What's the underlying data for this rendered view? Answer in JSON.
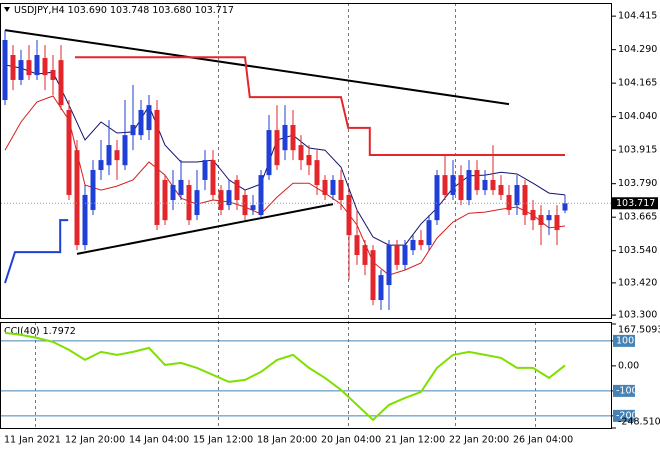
{
  "chart_data": [
    {
      "type": "candlestick",
      "title": "USDJPY,H4",
      "last_bar_labels": {
        "open": "103.690",
        "high": "103.748",
        "low": "103.680",
        "close": "103.717"
      },
      "categories": [
        "11 Jan 2021",
        null,
        null,
        null,
        null,
        null,
        null,
        null,
        "12 Jan 20:00",
        null,
        null,
        null,
        null,
        null,
        null,
        null,
        "14 Jan 04:00",
        null,
        null,
        null,
        null,
        null,
        null,
        null,
        "15 Jan 12:00",
        null,
        null,
        null,
        null,
        null,
        null,
        null,
        "18 Jan 20:00",
        null,
        null,
        null,
        null,
        null,
        null,
        null,
        "20 Jan 04:00",
        null,
        null,
        null,
        null,
        null,
        null,
        null,
        "21 Jan 12:00",
        null,
        null,
        null,
        null,
        null,
        null,
        null,
        "22 Jan 20:00",
        null,
        null,
        null,
        null,
        null,
        null,
        null,
        "26 Jan 04:00",
        null,
        null,
        null,
        null,
        null,
        null
      ],
      "open": [
        104.102,
        104.27,
        104.177,
        104.251,
        104.195,
        104.259,
        104.214,
        104.251,
        104.065,
        103.915,
        103.561,
        103.692,
        103.841,
        103.859,
        103.915,
        103.859,
        103.971,
        103.971,
        103.99,
        104.065,
        103.804,
        103.729,
        103.748,
        103.785,
        103.673,
        103.804,
        103.878,
        103.766,
        103.71,
        103.804,
        103.748,
        103.692,
        103.673,
        103.822,
        103.99,
        103.915,
        104.009,
        103.934,
        103.897,
        103.878,
        103.804,
        103.748,
        103.804,
        103.748,
        103.598,
        103.561,
        103.542,
        103.356,
        103.412,
        103.561,
        103.487,
        103.542,
        103.58,
        103.561,
        103.654,
        103.822,
        103.748,
        103.822,
        103.729,
        103.841,
        103.766,
        103.804,
        103.785,
        103.748,
        103.71,
        103.785,
        103.692,
        103.673,
        103.654,
        103.673,
        103.69
      ],
      "high": [
        104.363,
        104.307,
        104.289,
        104.307,
        104.326,
        104.307,
        104.27,
        104.307,
        104.102,
        103.953,
        103.785,
        103.878,
        103.953,
        104.027,
        103.953,
        104.102,
        104.158,
        104.102,
        104.121,
        104.102,
        103.822,
        103.841,
        103.878,
        103.804,
        103.841,
        103.915,
        103.915,
        103.785,
        103.804,
        103.822,
        103.766,
        103.748,
        103.841,
        104.046,
        104.083,
        104.083,
        104.065,
        103.971,
        103.934,
        103.915,
        103.822,
        103.822,
        103.841,
        103.766,
        103.692,
        103.58,
        103.561,
        103.468,
        103.58,
        103.58,
        103.58,
        103.598,
        103.617,
        103.673,
        103.841,
        103.897,
        103.878,
        103.859,
        103.878,
        103.878,
        103.841,
        103.934,
        103.822,
        103.785,
        103.822,
        103.804,
        103.729,
        103.71,
        103.692,
        103.71,
        103.748
      ],
      "low": [
        104.083,
        104.139,
        104.158,
        104.177,
        104.177,
        104.139,
        104.121,
        104.065,
        103.729,
        103.542,
        103.542,
        103.673,
        103.804,
        103.822,
        103.804,
        103.841,
        103.915,
        103.953,
        103.953,
        103.617,
        103.636,
        103.692,
        103.729,
        103.636,
        103.654,
        103.766,
        103.729,
        103.673,
        103.692,
        103.692,
        103.654,
        103.673,
        103.662,
        103.804,
        103.841,
        103.878,
        103.878,
        103.841,
        103.822,
        103.748,
        103.729,
        103.729,
        103.692,
        103.431,
        103.487,
        103.449,
        103.337,
        103.319,
        103.319,
        103.468,
        103.468,
        103.524,
        103.542,
        103.542,
        103.636,
        103.729,
        103.729,
        103.71,
        103.71,
        103.748,
        103.748,
        103.748,
        103.729,
        103.673,
        103.673,
        103.636,
        103.617,
        103.561,
        103.598,
        103.561,
        103.68
      ],
      "close": [
        104.326,
        104.177,
        104.251,
        104.195,
        104.27,
        104.195,
        104.177,
        104.083,
        103.748,
        103.561,
        103.748,
        103.841,
        103.878,
        103.934,
        103.878,
        103.971,
        104.009,
        104.065,
        104.083,
        103.636,
        103.654,
        103.785,
        103.804,
        103.654,
        103.766,
        103.878,
        103.748,
        103.692,
        103.766,
        103.729,
        103.673,
        103.71,
        103.822,
        103.99,
        103.859,
        104.009,
        103.915,
        103.878,
        103.859,
        103.785,
        103.748,
        103.804,
        103.729,
        103.598,
        103.524,
        103.487,
        103.356,
        103.449,
        103.561,
        103.487,
        103.561,
        103.58,
        103.561,
        103.654,
        103.822,
        103.748,
        103.822,
        103.729,
        103.841,
        103.766,
        103.804,
        103.766,
        103.748,
        103.692,
        103.785,
        103.673,
        103.654,
        103.636,
        103.673,
        103.617,
        103.717
      ],
      "up_color": "#1f3fd6",
      "down_color": "#e3262b",
      "ylim": [
        103.289,
        104.464
      ],
      "yticks": [
        104.415,
        {
          "value": 104.29,
          "label": "104.290"
        },
        104.165,
        {
          "value": 104.04,
          "label": "104.040"
        },
        103.915,
        {
          "value": 103.79,
          "label": "103.790"
        },
        103.665,
        {
          "value": 103.54,
          "label": "103.540"
        },
        {
          "value": 103.42,
          "label": "103.420"
        },
        {
          "value": 103.3,
          "label": "103.300"
        }
      ],
      "overlays": [
        {
          "color": "#000000",
          "width": 2,
          "x": [
            0,
            63
          ],
          "y": [
            104.363,
            104.087
          ]
        },
        {
          "color": "#000000",
          "width": 2,
          "x": [
            9,
            41
          ],
          "y": [
            103.528,
            103.714
          ]
        },
        {
          "color": "#e3262b",
          "width": 2,
          "x": [
            8.75,
            30,
            30.6,
            42,
            42.9,
            45.6,
            45.6,
            70
          ],
          "y": [
            104.262,
            104.262,
            104.113,
            104.113,
            103.998,
            103.998,
            103.897,
            103.897
          ]
        },
        {
          "color": "#1f3fd6",
          "width": 2,
          "x": [
            0,
            1.25,
            6.9,
            6.9,
            7.9
          ],
          "y": [
            103.419,
            103.535,
            103.535,
            103.654,
            103.654
          ]
        },
        {
          "color": "#14146e",
          "width": 1,
          "x": [
            0,
            2,
            4,
            6,
            8,
            10,
            12,
            14,
            16,
            18,
            20,
            22,
            24,
            26,
            28,
            30,
            32,
            34,
            36,
            38,
            40,
            42,
            44,
            46,
            48,
            50,
            52,
            54,
            56,
            58,
            60,
            62,
            64,
            66,
            68,
            70
          ],
          "y": [
            104.233,
            104.221,
            104.199,
            104.206,
            104.083,
            103.953,
            104.02,
            103.979,
            103.983,
            104.08,
            103.934,
            103.871,
            103.871,
            103.878,
            103.804,
            103.766,
            103.789,
            103.953,
            103.971,
            103.923,
            103.915,
            103.852,
            103.692,
            103.591,
            103.561,
            103.561,
            103.64,
            103.699,
            103.774,
            103.819,
            103.822,
            103.833,
            103.826,
            103.792,
            103.755,
            103.748
          ]
        },
        {
          "color": "#d42020",
          "width": 1,
          "x": [
            0,
            2,
            4,
            6,
            8,
            10,
            12,
            14,
            16,
            18,
            20,
            22,
            24,
            26,
            28,
            30,
            32,
            34,
            36,
            38,
            40,
            42,
            44,
            46,
            48,
            50,
            52,
            54,
            56,
            58,
            60,
            62,
            64,
            66,
            68,
            70
          ],
          "y": [
            103.915,
            104.02,
            104.095,
            104.117,
            104.027,
            103.785,
            103.766,
            103.781,
            103.804,
            103.871,
            103.822,
            103.736,
            103.714,
            103.729,
            103.722,
            103.703,
            103.677,
            103.74,
            103.792,
            103.792,
            103.755,
            103.714,
            103.636,
            103.498,
            103.449,
            103.468,
            103.494,
            103.587,
            103.647,
            103.68,
            103.684,
            103.695,
            103.703,
            103.673,
            103.625,
            103.632
          ]
        }
      ]
    },
    {
      "type": "line",
      "name": "CCI(40)",
      "color": "#7fe000",
      "x": [
        0,
        2,
        4,
        6,
        8,
        10,
        12,
        14,
        16,
        18,
        20,
        22,
        24,
        26,
        28,
        30,
        32,
        34,
        36,
        38,
        40,
        42,
        44,
        46,
        48,
        50,
        52,
        54,
        56,
        58,
        60,
        62,
        64,
        66,
        68,
        70
      ],
      "values": [
        132,
        124,
        112,
        96,
        64,
        24,
        56,
        44,
        56,
        72,
        4,
        12,
        -8,
        -36,
        -64,
        -56,
        -24,
        24,
        44,
        -8,
        -48,
        -96,
        -156,
        -216,
        -156,
        -128,
        -104,
        -8,
        44,
        56,
        44,
        32,
        -8,
        -8,
        -48,
        1.7972
      ],
      "ylim": [
        -248.5109,
        167.5093
      ],
      "yticks": [
        167.5093,
        100,
        {
          "value": 0,
          "label": "0.00"
        },
        -100,
        -200,
        -248.5109
      ],
      "levels": [
        100,
        -100,
        -200
      ],
      "level_color": "#4682b4"
    }
  ]
}
